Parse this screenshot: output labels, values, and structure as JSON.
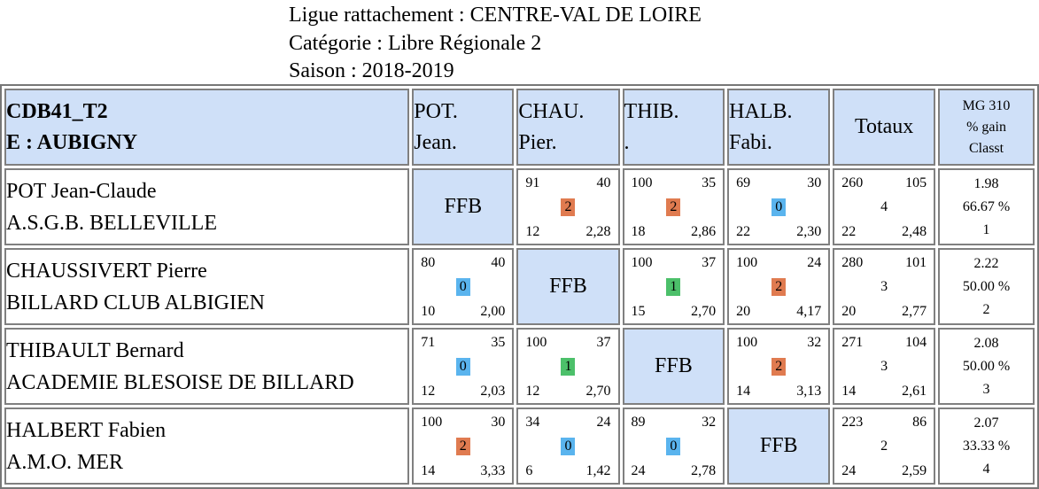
{
  "header": {
    "ligue": "Ligue rattachement : CENTRE-VAL DE LOIRE",
    "categorie": "Catégorie : Libre Régionale 2",
    "saison": "Saison : 2018-2019"
  },
  "colors": {
    "header_bg": "#cfe0f8",
    "win": "#e07b50",
    "draw": "#4cc06a",
    "loss": "#5ab4ee"
  },
  "table": {
    "team_line1": "CDB41_T2",
    "team_line2": "E : AUBIGNY",
    "columns": [
      {
        "line1": "POT.",
        "line2": "Jean."
      },
      {
        "line1": "CHAU.",
        "line2": "Pier."
      },
      {
        "line1": "THIB.",
        "line2": "."
      },
      {
        "line1": "HALB.",
        "line2": "Fabi."
      }
    ],
    "totals_label": "Totaux",
    "mg_line1": "MG 310",
    "mg_line2": "% gain",
    "mg_line3": "Classt",
    "ffb_label": "FFB",
    "rows": [
      {
        "name": "POT Jean-Claude",
        "club": "A.S.G.B. BELLEVILLE",
        "cells": [
          null,
          {
            "pts": "91",
            "reprises": "40",
            "score": "2",
            "series": "12",
            "avg": "2,28"
          },
          {
            "pts": "100",
            "reprises": "35",
            "score": "2",
            "series": "18",
            "avg": "2,86"
          },
          {
            "pts": "69",
            "reprises": "30",
            "score": "0",
            "series": "22",
            "avg": "2,30"
          }
        ],
        "totals": {
          "pts": "260",
          "reprises": "105",
          "score": "4",
          "series": "22",
          "avg": "2,48"
        },
        "mg": "1.98",
        "pct": "66.67 %",
        "rank": "1"
      },
      {
        "name": "CHAUSSIVERT Pierre",
        "club": "BILLARD CLUB ALBIGIEN",
        "cells": [
          {
            "pts": "80",
            "reprises": "40",
            "score": "0",
            "series": "10",
            "avg": "2,00"
          },
          null,
          {
            "pts": "100",
            "reprises": "37",
            "score": "1",
            "series": "15",
            "avg": "2,70"
          },
          {
            "pts": "100",
            "reprises": "24",
            "score": "2",
            "series": "20",
            "avg": "4,17"
          }
        ],
        "totals": {
          "pts": "280",
          "reprises": "101",
          "score": "3",
          "series": "20",
          "avg": "2,77"
        },
        "mg": "2.22",
        "pct": "50.00 %",
        "rank": "2"
      },
      {
        "name": "THIBAULT Bernard",
        "club": "ACADEMIE BLESOISE DE BILLARD",
        "cells": [
          {
            "pts": "71",
            "reprises": "35",
            "score": "0",
            "series": "12",
            "avg": "2,03"
          },
          {
            "pts": "100",
            "reprises": "37",
            "score": "1",
            "series": "12",
            "avg": "2,70"
          },
          null,
          {
            "pts": "100",
            "reprises": "32",
            "score": "2",
            "series": "14",
            "avg": "3,13"
          }
        ],
        "totals": {
          "pts": "271",
          "reprises": "104",
          "score": "3",
          "series": "14",
          "avg": "2,61"
        },
        "mg": "2.08",
        "pct": "50.00 %",
        "rank": "3"
      },
      {
        "name": "HALBERT Fabien",
        "club": "A.M.O. MER",
        "cells": [
          {
            "pts": "100",
            "reprises": "30",
            "score": "2",
            "series": "14",
            "avg": "3,33"
          },
          {
            "pts": "34",
            "reprises": "24",
            "score": "0",
            "series": "6",
            "avg": "1,42"
          },
          {
            "pts": "89",
            "reprises": "32",
            "score": "0",
            "series": "24",
            "avg": "2,78"
          },
          null
        ],
        "totals": {
          "pts": "223",
          "reprises": "86",
          "score": "2",
          "series": "24",
          "avg": "2,59"
        },
        "mg": "2.07",
        "pct": "33.33 %",
        "rank": "4"
      }
    ]
  }
}
